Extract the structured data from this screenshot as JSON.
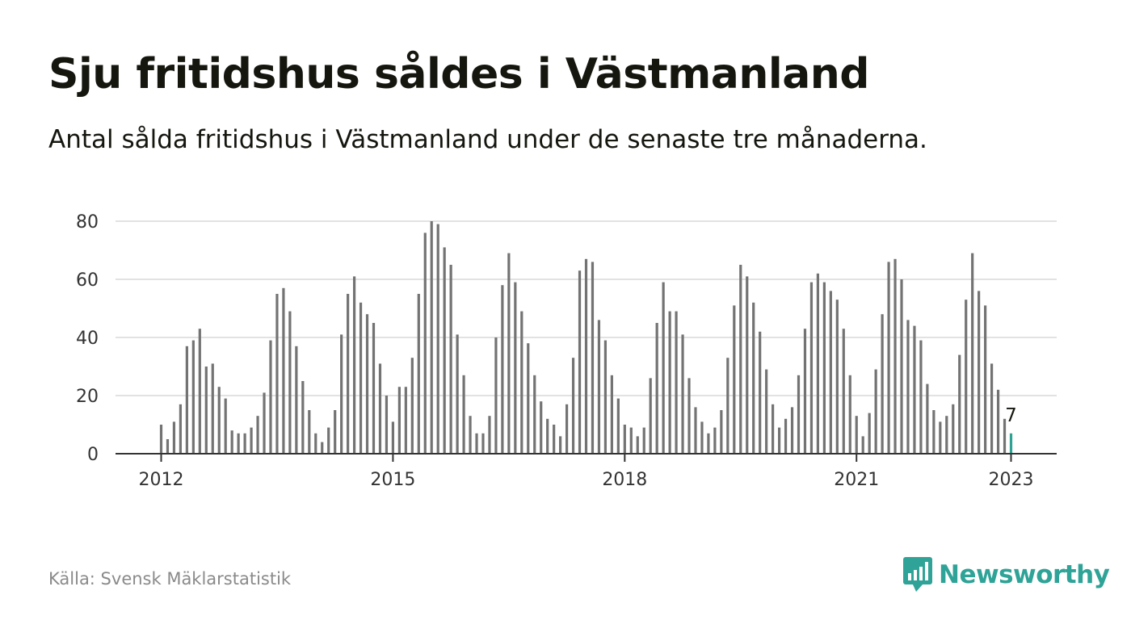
{
  "header": {
    "title": "Sju fritidshus såldes i Västmanland",
    "subtitle": "Antal sålda fritidshus i Västmanland under de senaste tre månaderna."
  },
  "footer": {
    "source": "Källa: Svensk Mäklarstatistik",
    "logo_text": "Newsworthy"
  },
  "colors": {
    "bar": "#737373",
    "highlight": "#2ea394",
    "grid": "#d9d9d9",
    "axis": "#333333",
    "text": "#333333",
    "brand": "#2fa397"
  },
  "icons": {
    "logo": "bar-chart-speech-bubble-icon"
  },
  "chart_data": {
    "type": "bar",
    "title": "Sju fritidshus såldes i Västmanland",
    "subtitle": "Antal sålda fritidshus i Västmanland under de senaste tre månaderna.",
    "frequency": "monthly",
    "start": "2012-01",
    "end": "2023-01",
    "values": [
      10,
      5,
      11,
      17,
      37,
      39,
      43,
      30,
      31,
      23,
      19,
      8,
      7,
      7,
      9,
      13,
      21,
      39,
      55,
      57,
      49,
      37,
      25,
      15,
      7,
      4,
      9,
      15,
      41,
      55,
      61,
      52,
      48,
      45,
      31,
      20,
      11,
      23,
      23,
      33,
      55,
      76,
      80,
      79,
      71,
      65,
      41,
      27,
      13,
      7,
      7,
      13,
      40,
      58,
      69,
      59,
      49,
      38,
      27,
      18,
      12,
      10,
      6,
      17,
      33,
      63,
      67,
      66,
      46,
      39,
      27,
      19,
      10,
      9,
      6,
      9,
      26,
      45,
      59,
      49,
      49,
      41,
      26,
      16,
      11,
      7,
      9,
      15,
      33,
      51,
      65,
      61,
      52,
      42,
      29,
      17,
      9,
      12,
      16,
      27,
      43,
      59,
      62,
      59,
      56,
      53,
      43,
      27,
      13,
      6,
      14,
      29,
      48,
      66,
      67,
      60,
      46,
      44,
      39,
      24,
      15,
      11,
      13,
      17,
      34,
      53,
      69,
      56,
      51,
      31,
      22,
      12,
      7
    ],
    "x_tick_labels": [
      "2012",
      "2015",
      "2018",
      "2021",
      "2023"
    ],
    "y_tick_labels": [
      "0",
      "20",
      "40",
      "60",
      "80"
    ],
    "ylim": [
      0,
      80
    ],
    "highlight": {
      "label": "7",
      "value": 7
    },
    "grid": true,
    "legend": "none"
  }
}
